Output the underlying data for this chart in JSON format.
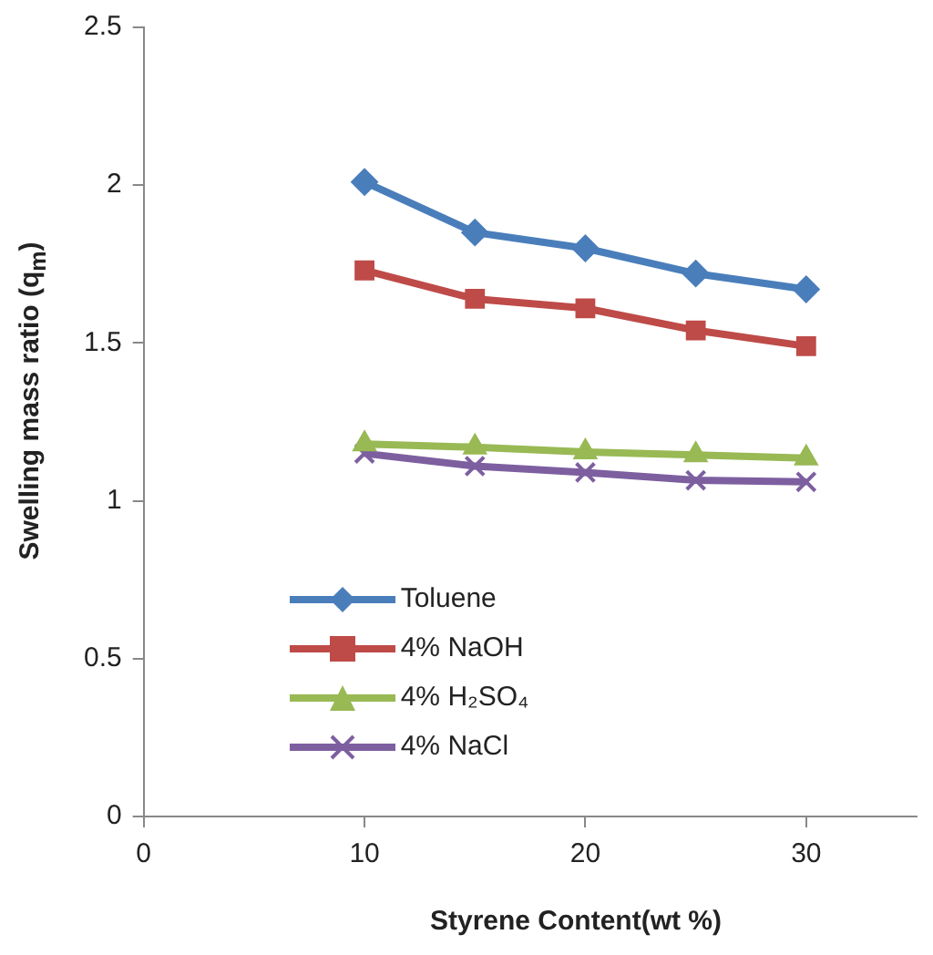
{
  "chart_data": {
    "type": "line",
    "xlabel": "Styrene Content(wt %)",
    "ylabel": "Swelling mass ratio (q$_{m}$)",
    "x": [
      10,
      15,
      20,
      25,
      30
    ],
    "xlim": [
      0,
      35
    ],
    "xticks": [
      0,
      10,
      20,
      30
    ],
    "ylim": [
      0,
      2.5
    ],
    "yticks": [
      0,
      0.5,
      1,
      1.5,
      2,
      2.5
    ],
    "grid": false,
    "legend": "bottom left",
    "series": [
      {
        "name": "Toluene",
        "color": "#4a7ebb",
        "marker": "diamond",
        "values": [
          2.01,
          1.85,
          1.8,
          1.72,
          1.67
        ]
      },
      {
        "name": "4% NaOH",
        "color": "#be4b48",
        "marker": "square",
        "values": [
          1.73,
          1.64,
          1.61,
          1.54,
          1.49
        ]
      },
      {
        "name": "4% H₂SO₄",
        "color": "#98b954",
        "marker": "triangle",
        "values": [
          1.18,
          1.17,
          1.155,
          1.145,
          1.135
        ]
      },
      {
        "name": "4% NaCl",
        "color": "#7d5fa0",
        "marker": "cross",
        "values": [
          1.15,
          1.11,
          1.09,
          1.065,
          1.06
        ]
      }
    ]
  }
}
